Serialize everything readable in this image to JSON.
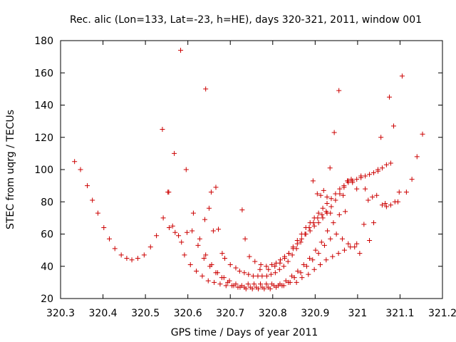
{
  "chart_data": {
    "type": "scatter",
    "title": "Rec. alic (Lon=133, Lat=-23, h=HE), days 320-321, 2011, window 001",
    "xlabel": "GPS time / Days of year 2011",
    "ylabel": "STEC from uqrg / TECUs",
    "xlim": [
      320.3,
      321.2
    ],
    "ylim": [
      20,
      180
    ],
    "xticks": [
      320.3,
      320.4,
      320.5,
      320.6,
      320.7,
      320.8,
      320.9,
      321,
      321.1,
      321.2
    ],
    "xtick_labels": [
      "320.3",
      "320.4",
      "320.5",
      "320.6",
      "320.7",
      "320.8",
      "320.9",
      "321",
      "321.1",
      "321.2"
    ],
    "yticks": [
      20,
      40,
      60,
      80,
      100,
      120,
      140,
      160,
      180
    ],
    "ytick_labels": [
      "20",
      "40",
      "60",
      "80",
      "100",
      "120",
      "140",
      "160",
      "180"
    ],
    "grid": false,
    "marker": "plus",
    "color": "#cc0000",
    "series": [
      {
        "x": [
          320.333,
          320.347,
          320.363,
          320.375,
          320.388,
          320.402,
          320.415,
          320.428,
          320.443,
          320.456,
          320.468,
          320.482,
          320.497,
          320.512,
          320.526,
          320.542,
          320.556,
          320.57,
          320.585,
          320.598,
          320.613,
          320.628,
          320.642,
          320.656,
          320.67,
          320.685,
          320.698,
          320.713,
          320.727,
          320.742,
          320.756,
          320.771,
          320.785,
          320.798,
          320.813,
          320.826,
          320.841,
          320.856,
          320.869,
          320.884,
          320.898,
          320.912,
          320.926,
          320.941,
          320.955,
          320.969,
          320.983,
          320.998
        ],
        "y": [
          105,
          100,
          90,
          81,
          73,
          64,
          57,
          51,
          47,
          45,
          44,
          45,
          47,
          52,
          59,
          70,
          64,
          61,
          55,
          61,
          73,
          57,
          47,
          41,
          36,
          33,
          31,
          29,
          28,
          29,
          29,
          29,
          29,
          29,
          28,
          28,
          30,
          30,
          33,
          35,
          38,
          41,
          44,
          46,
          48,
          50,
          52,
          54
        ]
      },
      {
        "x": [
          320.54,
          320.553,
          320.555,
          320.568,
          320.583,
          320.596,
          320.61,
          320.624,
          320.638,
          320.652,
          320.666,
          320.68,
          320.694,
          320.708,
          320.723,
          320.737,
          320.752,
          320.766,
          320.78,
          320.794,
          320.808,
          320.822,
          320.837,
          320.851,
          320.866,
          320.88,
          320.894,
          320.908,
          320.922,
          320.936,
          320.95,
          320.964,
          320.978,
          320.993
        ],
        "y": [
          125,
          86,
          86,
          110,
          174,
          100,
          62,
          53,
          45,
          40,
          36,
          33,
          30,
          28,
          27,
          26,
          26,
          26,
          26,
          26,
          27,
          28,
          30,
          33,
          36,
          40,
          44,
          48,
          53,
          57,
          60,
          57,
          54,
          52
        ]
      },
      {
        "x": [
          320.564,
          320.578,
          320.592,
          320.606,
          320.62,
          320.634,
          320.648,
          320.662,
          320.676,
          320.69,
          320.704,
          320.718,
          320.733,
          320.747,
          320.761,
          320.775,
          320.789,
          320.803,
          320.817,
          320.831,
          320.845,
          320.859,
          320.873,
          320.887,
          320.901,
          320.915,
          320.929,
          320.943,
          320.957,
          320.971
        ],
        "y": [
          65,
          59,
          47,
          41,
          37,
          34,
          31,
          30,
          29,
          28,
          28,
          27,
          27,
          27,
          27,
          27,
          27,
          28,
          29,
          31,
          34,
          37,
          41,
          45,
          50,
          55,
          62,
          67,
          72,
          74
        ]
      },
      {
        "x": [
          320.64,
          320.65,
          320.66,
          320.672,
          320.681,
          320.687,
          320.7,
          320.713,
          320.722,
          320.733,
          320.743,
          320.754,
          320.765,
          320.775,
          320.786,
          320.796,
          320.806,
          320.816,
          320.826,
          320.836,
          320.846,
          320.856,
          320.866,
          320.876,
          320.886,
          320.896,
          320.906,
          320.916,
          320.926,
          320.936
        ],
        "y": [
          69,
          76,
          62,
          63,
          48,
          45,
          41,
          39,
          37,
          36,
          35,
          34,
          34,
          34,
          34,
          35,
          36,
          38,
          40,
          43,
          47,
          51,
          55,
          60,
          64,
          67,
          70,
          72,
          74,
          73
        ]
      },
      {
        "x": [
          320.642,
          320.655,
          320.666,
          320.728,
          320.735,
          320.745,
          320.758,
          320.772,
          320.785,
          320.798,
          320.808,
          320.818,
          320.828,
          320.838,
          320.848,
          320.858,
          320.868,
          320.878,
          320.888,
          320.898,
          320.908,
          320.918,
          320.928,
          320.938,
          320.948,
          320.958,
          320.968,
          320.978,
          320.988,
          320.998
        ],
        "y": [
          150,
          86,
          89,
          75,
          57,
          46,
          43,
          41,
          40,
          41,
          42,
          44,
          46,
          48,
          51,
          54,
          57,
          60,
          62,
          65,
          67,
          70,
          73,
          77,
          81,
          85,
          89,
          93,
          92,
          88
        ]
      },
      {
        "x": [
          320.77,
          320.79,
          320.805,
          320.817,
          320.828,
          320.838,
          320.848,
          320.858,
          320.868,
          320.878,
          320.888,
          320.898,
          320.908,
          320.918,
          320.928,
          320.938,
          320.948,
          320.958,
          320.968,
          320.978,
          320.988,
          320.998,
          321.008,
          321.018,
          321.028,
          321.038,
          321.048,
          321.058,
          321.068,
          321.078
        ],
        "y": [
          38,
          38,
          40,
          42,
          45,
          48,
          52,
          56,
          60,
          64,
          67,
          70,
          73,
          76,
          79,
          82,
          85,
          88,
          90,
          92,
          93,
          94,
          95,
          96,
          97,
          98,
          100,
          101,
          103,
          104
        ]
      },
      {
        "x": [
          320.895,
          320.905,
          320.913,
          320.92,
          320.928,
          320.935,
          320.945,
          320.956,
          320.966,
          320.976,
          320.985,
          321.005,
          321.015,
          321.025,
          321.035,
          321.045,
          321.055,
          321.065,
          321.075,
          321.085,
          321.095,
          321.105,
          321.115,
          321.128,
          321.14,
          321.153
        ],
        "y": [
          93,
          85,
          84,
          87,
          83,
          101,
          123,
          149,
          84,
          93,
          94,
          48,
          66,
          81,
          83,
          84,
          120,
          79,
          145,
          127,
          80,
          158,
          86,
          94,
          108,
          122
        ]
      },
      {
        "x": [
          321.008,
          321.018,
          321.028,
          321.038,
          321.048,
          321.058,
          321.068,
          321.078,
          321.088,
          321.098
        ],
        "y": [
          96,
          88,
          56,
          67,
          99,
          78,
          77,
          78,
          80,
          86
        ]
      }
    ]
  }
}
